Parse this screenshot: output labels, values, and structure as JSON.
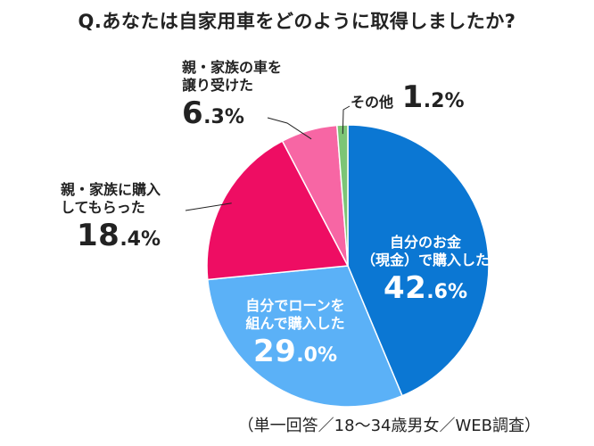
{
  "title": "Q.あなたは自家用車をどのように取得しましたか?",
  "footnote": "（単一回答／18～34歳男女／WEB調査）",
  "chart_data": {
    "type": "pie",
    "title": "Q.あなたは自家用車をどのように取得しましたか?",
    "slices": [
      {
        "label_lines": [
          "自分のお金",
          "（現金）で購入した"
        ],
        "value": 42.6,
        "int": "42",
        "dec": ".6",
        "pct": "%",
        "color": "#0b77d3"
      },
      {
        "label_lines": [
          "自分でローンを",
          "組んで購入した"
        ],
        "value": 29.0,
        "int": "29",
        "dec": ".0",
        "pct": "%",
        "color": "#5bb1f7"
      },
      {
        "label_lines": [
          "親・家族に購入",
          "してもらった"
        ],
        "value": 18.4,
        "int": "18",
        "dec": ".4",
        "pct": "%",
        "color": "#ee0d63"
      },
      {
        "label_lines": [
          "親・家族の車を",
          "譲り受けた"
        ],
        "value": 6.3,
        "int": "6",
        "dec": ".3",
        "pct": "%",
        "color": "#f766a4"
      },
      {
        "label_lines": [
          "その他"
        ],
        "value": 1.2,
        "int": "1",
        "dec": ".2",
        "pct": "%",
        "color": "#7cc576"
      }
    ]
  }
}
